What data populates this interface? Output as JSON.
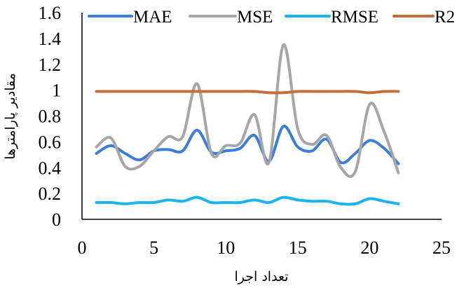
{
  "chart_data": {
    "type": "line",
    "smooth": true,
    "xlabel": "تعداد اجرا",
    "ylabel": "مقادیر پارامترها",
    "xlim": [
      0,
      25
    ],
    "ylim": [
      0,
      1.6
    ],
    "x_ticks": [
      "0",
      "5",
      "10",
      "15",
      "20",
      "25"
    ],
    "y_ticks": [
      "0",
      "0.2",
      "0.4",
      "0.6",
      "0.8",
      "1",
      "1.2",
      "1.4",
      "1.6"
    ],
    "grid": false,
    "legend_position": "top",
    "x": [
      1,
      2,
      3,
      4,
      5,
      6,
      7,
      8,
      9,
      10,
      11,
      12,
      13,
      14,
      15,
      16,
      17,
      18,
      19,
      20,
      21,
      22
    ],
    "series": [
      {
        "name": "MAE",
        "color": "#3b7dd8",
        "values": [
          0.51,
          0.57,
          0.51,
          0.46,
          0.53,
          0.54,
          0.53,
          0.69,
          0.52,
          0.53,
          0.55,
          0.65,
          0.45,
          0.72,
          0.56,
          0.53,
          0.62,
          0.44,
          0.51,
          0.61,
          0.55,
          0.43
        ]
      },
      {
        "name": "MSE",
        "color": "#a6a6a6",
        "values": [
          0.56,
          0.63,
          0.41,
          0.41,
          0.53,
          0.64,
          0.64,
          1.05,
          0.51,
          0.57,
          0.59,
          0.81,
          0.44,
          1.35,
          0.7,
          0.58,
          0.65,
          0.4,
          0.37,
          0.89,
          0.68,
          0.36
        ]
      },
      {
        "name": "RMSE",
        "color": "#1ab4ee",
        "values": [
          0.13,
          0.13,
          0.12,
          0.13,
          0.13,
          0.15,
          0.14,
          0.17,
          0.13,
          0.13,
          0.13,
          0.15,
          0.13,
          0.17,
          0.15,
          0.14,
          0.14,
          0.12,
          0.12,
          0.16,
          0.14,
          0.12
        ]
      },
      {
        "name": "R2",
        "color": "#c0703a",
        "values": [
          0.99,
          0.99,
          0.99,
          0.99,
          0.99,
          0.99,
          0.99,
          0.99,
          0.99,
          0.99,
          0.99,
          0.99,
          0.98,
          0.98,
          0.99,
          0.99,
          0.99,
          0.99,
          0.99,
          0.98,
          0.99,
          0.99
        ]
      }
    ]
  }
}
